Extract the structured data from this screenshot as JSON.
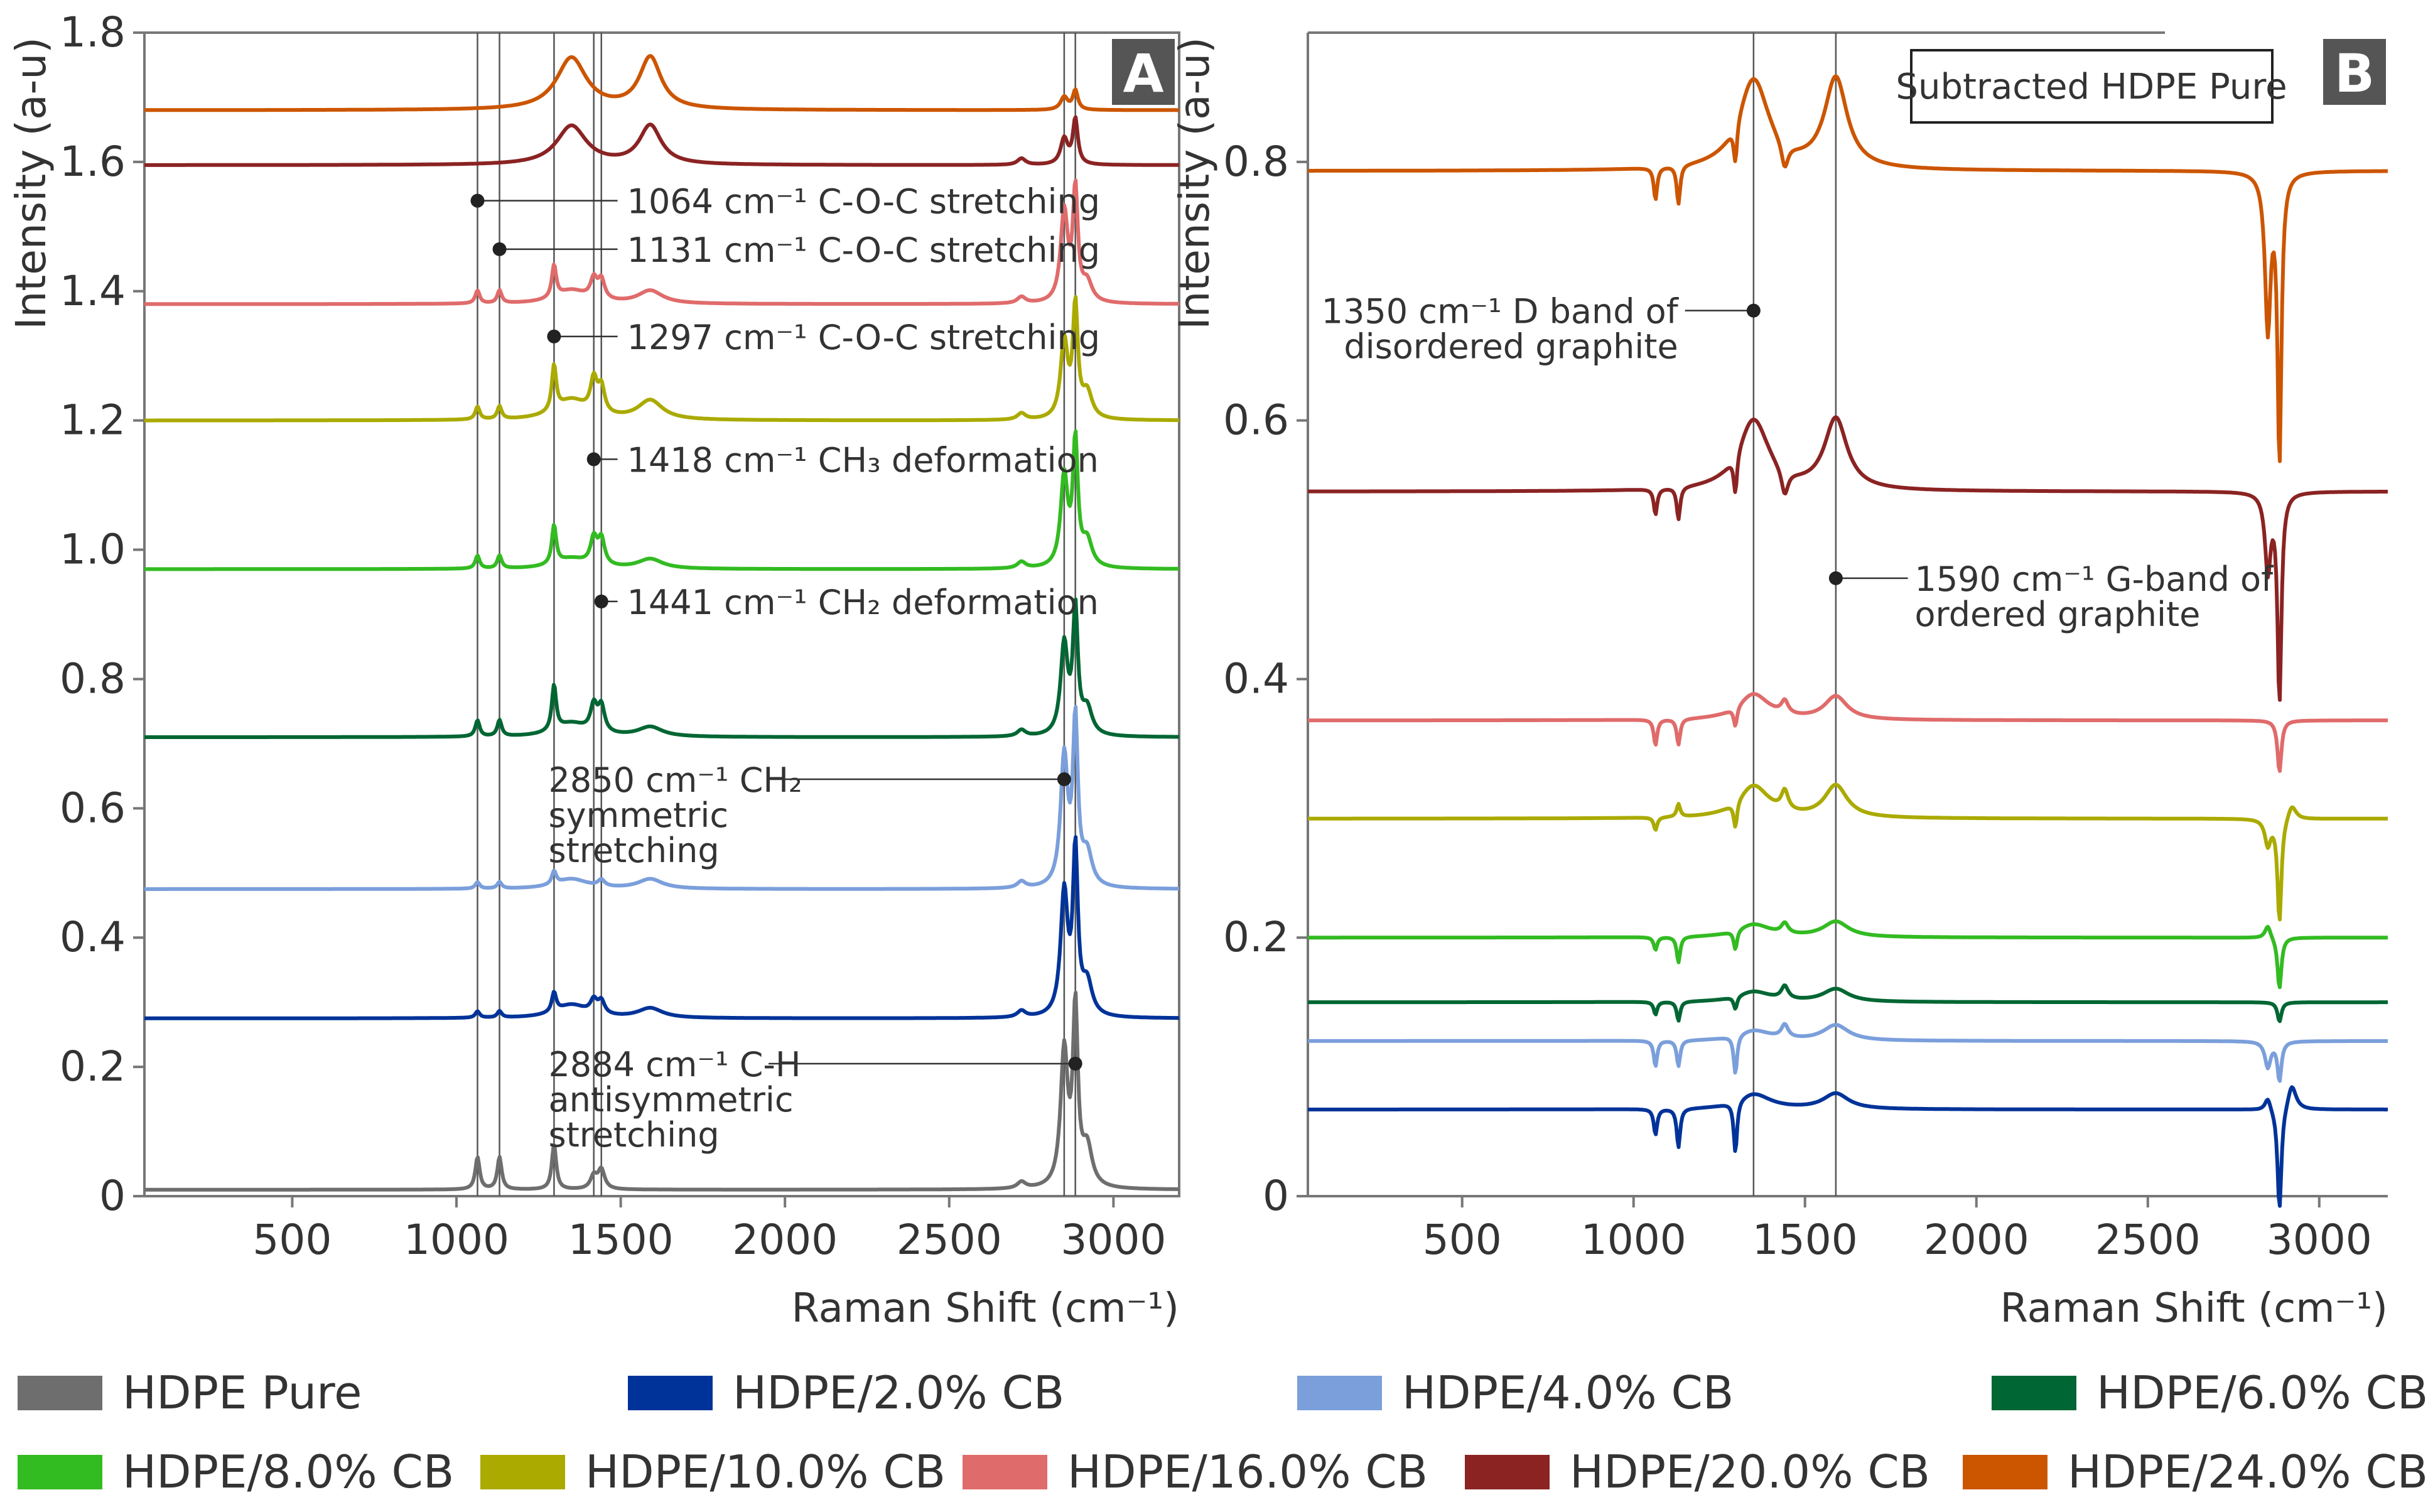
{
  "chart_data": [
    {
      "panel": "A",
      "type": "line",
      "title": "",
      "ylabel": "Intensity (a-u)",
      "xlabel": "Raman Shift (cm⁻¹)",
      "xlim": [
        50,
        3200
      ],
      "ylim": [
        0,
        1.8
      ],
      "xticks": [
        "500",
        "1000",
        "1500",
        "2000",
        "2500",
        "3000"
      ],
      "yticks": [
        "0",
        "0.2",
        "0.4",
        "0.6",
        "0.8",
        "1.0",
        "1.2",
        "1.4",
        "1.6",
        "1.8"
      ],
      "ref_lines": [
        1064,
        1131,
        1297,
        1418,
        1441,
        2850,
        2884
      ],
      "annotations": [
        {
          "x": 1064,
          "y": 1.54,
          "text": "1064 cm⁻¹ C-O-C stretching"
        },
        {
          "x": 1131,
          "y": 1.465,
          "text": "1131 cm⁻¹ C-O-C stretching"
        },
        {
          "x": 1297,
          "y": 1.33,
          "text": "1297 cm⁻¹ C-O-C stretching"
        },
        {
          "x": 1418,
          "y": 1.14,
          "text": "1418 cm⁻¹ CH₃ deformation"
        },
        {
          "x": 1441,
          "y": 0.92,
          "text": "1441 cm⁻¹ CH₂ deformation"
        },
        {
          "x": 2850,
          "y": 0.645,
          "text": "2850 cm⁻¹ CH₂ symmetric stretching",
          "lines": [
            "2850 cm⁻¹ CH₂",
            "symmetric",
            "stretching"
          ]
        },
        {
          "x": 2884,
          "y": 0.205,
          "text": "2884 cm⁻¹ C-H antisymmetric stretching",
          "lines": [
            "2884 cm⁻¹ C-H",
            "antisymmetric",
            "stretching"
          ]
        }
      ],
      "series": [
        {
          "name": "HDPE Pure",
          "offset": 0.01,
          "bands": [
            [
              1064,
              0.05,
              8
            ],
            [
              1131,
              0.05,
              8
            ],
            [
              1297,
              0.07,
              8
            ],
            [
              1418,
              0.02,
              12
            ],
            [
              1441,
              0.03,
              12
            ],
            [
              2720,
              0.01,
              15
            ],
            [
              2850,
              0.21,
              13
            ],
            [
              2884,
              0.27,
              9
            ],
            [
              2920,
              0.06,
              18
            ]
          ]
        },
        {
          "name": "HDPE/2.0% CB",
          "offset": 0.275,
          "bands": [
            [
              1064,
              0.01,
              8
            ],
            [
              1131,
              0.01,
              8
            ],
            [
              1297,
              0.03,
              8
            ],
            [
              1350,
              0.02,
              60
            ],
            [
              1418,
              0.02,
              12
            ],
            [
              1441,
              0.02,
              12
            ],
            [
              1590,
              0.015,
              45
            ],
            [
              2720,
              0.01,
              15
            ],
            [
              2850,
              0.19,
              13
            ],
            [
              2884,
              0.25,
              9
            ],
            [
              2920,
              0.05,
              18
            ]
          ]
        },
        {
          "name": "HDPE/4.0% CB",
          "offset": 0.475,
          "bands": [
            [
              1064,
              0.01,
              8
            ],
            [
              1131,
              0.01,
              8
            ],
            [
              1297,
              0.02,
              8
            ],
            [
              1350,
              0.015,
              60
            ],
            [
              1441,
              0.01,
              12
            ],
            [
              1590,
              0.015,
              45
            ],
            [
              2720,
              0.01,
              15
            ],
            [
              2850,
              0.2,
              13
            ],
            [
              2884,
              0.25,
              9
            ],
            [
              2920,
              0.05,
              18
            ]
          ]
        },
        {
          "name": "HDPE/6.0% CB",
          "offset": 0.71,
          "bands": [
            [
              1064,
              0.025,
              8
            ],
            [
              1131,
              0.025,
              8
            ],
            [
              1297,
              0.07,
              8
            ],
            [
              1350,
              0.02,
              60
            ],
            [
              1418,
              0.04,
              12
            ],
            [
              1441,
              0.04,
              12
            ],
            [
              1590,
              0.015,
              45
            ],
            [
              2720,
              0.01,
              15
            ],
            [
              2850,
              0.14,
              13
            ],
            [
              2884,
              0.19,
              9
            ],
            [
              2920,
              0.04,
              18
            ]
          ]
        },
        {
          "name": "HDPE/8.0% CB",
          "offset": 0.97,
          "bands": [
            [
              1064,
              0.02,
              8
            ],
            [
              1131,
              0.02,
              8
            ],
            [
              1297,
              0.06,
              8
            ],
            [
              1350,
              0.015,
              60
            ],
            [
              1418,
              0.04,
              12
            ],
            [
              1441,
              0.04,
              12
            ],
            [
              1590,
              0.015,
              45
            ],
            [
              2720,
              0.01,
              15
            ],
            [
              2850,
              0.14,
              13
            ],
            [
              2884,
              0.19,
              9
            ],
            [
              2920,
              0.04,
              18
            ]
          ]
        },
        {
          "name": "HDPE/10.0% CB",
          "offset": 1.2,
          "bands": [
            [
              1064,
              0.02,
              8
            ],
            [
              1131,
              0.02,
              8
            ],
            [
              1297,
              0.07,
              8
            ],
            [
              1350,
              0.03,
              60
            ],
            [
              1418,
              0.05,
              12
            ],
            [
              1441,
              0.04,
              12
            ],
            [
              1590,
              0.03,
              45
            ],
            [
              2720,
              0.01,
              15
            ],
            [
              2850,
              0.12,
              13
            ],
            [
              2884,
              0.17,
              9
            ],
            [
              2920,
              0.04,
              18
            ]
          ]
        },
        {
          "name": "HDPE/16.0% CB",
          "offset": 1.38,
          "bands": [
            [
              1064,
              0.02,
              8
            ],
            [
              1131,
              0.02,
              8
            ],
            [
              1297,
              0.05,
              8
            ],
            [
              1350,
              0.02,
              60
            ],
            [
              1418,
              0.03,
              12
            ],
            [
              1441,
              0.03,
              12
            ],
            [
              1590,
              0.02,
              45
            ],
            [
              2720,
              0.01,
              15
            ],
            [
              2850,
              0.14,
              13
            ],
            [
              2884,
              0.17,
              9
            ],
            [
              2920,
              0.03,
              18
            ]
          ]
        },
        {
          "name": "HDPE/20.0% CB",
          "offset": 1.595,
          "bands": [
            [
              1350,
              0.06,
              55
            ],
            [
              1590,
              0.06,
              40
            ],
            [
              2720,
              0.01,
              15
            ],
            [
              2850,
              0.04,
              13
            ],
            [
              2884,
              0.07,
              9
            ]
          ]
        },
        {
          "name": "HDPE/24.0% CB",
          "offset": 1.68,
          "bands": [
            [
              1350,
              0.08,
              55
            ],
            [
              1590,
              0.08,
              40
            ],
            [
              2850,
              0.02,
              13
            ],
            [
              2884,
              0.03,
              9
            ]
          ]
        }
      ]
    },
    {
      "panel": "B",
      "type": "line",
      "title": "Subtracted HDPE Pure",
      "ylabel": "Intensity (a-u)",
      "xlabel": "Raman Shift (cm⁻¹)",
      "xlim": [
        50,
        3200
      ],
      "ylim": [
        0,
        0.9
      ],
      "xticks": [
        "500",
        "1000",
        "1500",
        "2000",
        "2500",
        "3000"
      ],
      "yticks": [
        "0",
        "0.2",
        "0.4",
        "0.6",
        "0.8"
      ],
      "ref_lines": [
        1350,
        1590
      ],
      "annotations": [
        {
          "x": 1350,
          "y": 0.685,
          "text": "1350 cm⁻¹ D band of disordered graphite",
          "lines": [
            "1350 cm⁻¹ D band of",
            "disordered graphite"
          ]
        },
        {
          "x": 1590,
          "y": 0.478,
          "text": "1590 cm⁻¹ G-band of ordered graphite",
          "lines": [
            "1590 cm⁻¹ G-band of",
            "ordered graphite"
          ]
        }
      ],
      "series": [
        {
          "name": "HDPE/2.0% CB",
          "offset": 0.067,
          "bands": [
            [
              1064,
              -0.02,
              6
            ],
            [
              1131,
              -0.03,
              6
            ],
            [
              1297,
              -0.04,
              6
            ],
            [
              1350,
              0.012,
              60
            ],
            [
              1590,
              0.012,
              45
            ],
            [
              2850,
              0.01,
              10
            ],
            [
              2884,
              -0.08,
              7
            ],
            [
              2920,
              0.02,
              15
            ]
          ]
        },
        {
          "name": "HDPE/4.0% CB",
          "offset": 0.12,
          "bands": [
            [
              1064,
              -0.02,
              6
            ],
            [
              1131,
              -0.02,
              6
            ],
            [
              1297,
              -0.03,
              6
            ],
            [
              1350,
              0.008,
              60
            ],
            [
              1441,
              0.01,
              12
            ],
            [
              1590,
              0.012,
              45
            ],
            [
              2850,
              -0.02,
              10
            ],
            [
              2884,
              -0.03,
              7
            ]
          ]
        },
        {
          "name": "HDPE/6.0% CB",
          "offset": 0.15,
          "bands": [
            [
              1064,
              -0.01,
              6
            ],
            [
              1131,
              -0.015,
              6
            ],
            [
              1297,
              -0.01,
              6
            ],
            [
              1350,
              0.008,
              60
            ],
            [
              1441,
              0.01,
              12
            ],
            [
              1590,
              0.01,
              45
            ],
            [
              2884,
              -0.015,
              7
            ]
          ]
        },
        {
          "name": "HDPE/8.0% CB",
          "offset": 0.2,
          "bands": [
            [
              1064,
              -0.01,
              6
            ],
            [
              1131,
              -0.02,
              6
            ],
            [
              1297,
              -0.015,
              6
            ],
            [
              1350,
              0.01,
              60
            ],
            [
              1441,
              0.008,
              12
            ],
            [
              1590,
              0.012,
              45
            ],
            [
              2850,
              0.01,
              10
            ],
            [
              2884,
              -0.04,
              7
            ]
          ]
        },
        {
          "name": "HDPE/10.0% CB",
          "offset": 0.292,
          "bands": [
            [
              1064,
              -0.01,
              6
            ],
            [
              1131,
              0.01,
              6
            ],
            [
              1297,
              -0.02,
              6
            ],
            [
              1350,
              0.025,
              55
            ],
            [
              1441,
              0.015,
              12
            ],
            [
              1590,
              0.025,
              40
            ],
            [
              2850,
              -0.02,
              10
            ],
            [
              2884,
              -0.08,
              7
            ],
            [
              2920,
              0.012,
              15
            ]
          ]
        },
        {
          "name": "HDPE/16.0% CB",
          "offset": 0.368,
          "bands": [
            [
              1064,
              -0.02,
              6
            ],
            [
              1131,
              -0.02,
              6
            ],
            [
              1297,
              -0.015,
              6
            ],
            [
              1350,
              0.02,
              55
            ],
            [
              1441,
              0.01,
              12
            ],
            [
              1590,
              0.018,
              40
            ],
            [
              2884,
              -0.04,
              7
            ]
          ]
        },
        {
          "name": "HDPE/20.0% CB",
          "offset": 0.545,
          "bands": [
            [
              1064,
              -0.02,
              6
            ],
            [
              1131,
              -0.025,
              6
            ],
            [
              1297,
              -0.03,
              6
            ],
            [
              1350,
              0.055,
              55
            ],
            [
              1441,
              -0.02,
              12
            ],
            [
              1590,
              0.055,
              40
            ],
            [
              2850,
              -0.06,
              10
            ],
            [
              2884,
              -0.16,
              7
            ]
          ]
        },
        {
          "name": "HDPE/24.0% CB",
          "offset": 0.793,
          "bands": [
            [
              1064,
              -0.025,
              6
            ],
            [
              1131,
              -0.03,
              6
            ],
            [
              1297,
              -0.03,
              6
            ],
            [
              1350,
              0.07,
              55
            ],
            [
              1441,
              -0.02,
              12
            ],
            [
              1590,
              0.07,
              40
            ],
            [
              2850,
              -0.12,
              10
            ],
            [
              2884,
              -0.22,
              7
            ]
          ]
        }
      ]
    }
  ],
  "legend": [
    {
      "label": "HDPE Pure",
      "color": "#6e6e6e"
    },
    {
      "label": "HDPE/2.0% CB",
      "color": "#003399"
    },
    {
      "label": "HDPE/4.0% CB",
      "color": "#7b9fdb"
    },
    {
      "label": "HDPE/6.0% CB",
      "color": "#006633"
    },
    {
      "label": "HDPE/8.0% CB",
      "color": "#33bb22"
    },
    {
      "label": "HDPE/10.0% CB",
      "color": "#aaaa00"
    },
    {
      "label": "HDPE/16.0% CB",
      "color": "#e06b6b"
    },
    {
      "label": "HDPE/20.0% CB",
      "color": "#8b2323"
    },
    {
      "label": "HDPE/24.0% CB",
      "color": "#cc5500"
    }
  ]
}
